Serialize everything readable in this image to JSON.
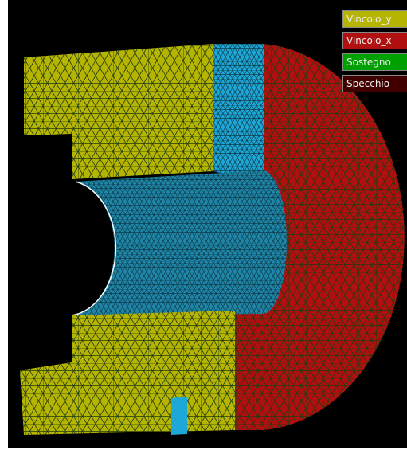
{
  "legend": [
    {
      "label": "Vincolo_y"
    },
    {
      "label": "Vincolo_x"
    },
    {
      "label": "Sostegno"
    },
    {
      "label": "Specchio"
    }
  ]
}
